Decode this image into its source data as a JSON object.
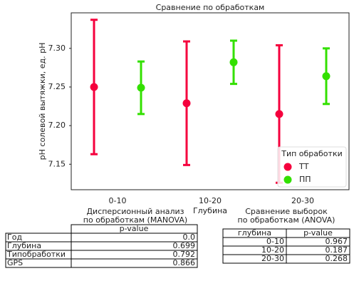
{
  "chart_data": {
    "type": "errorbar",
    "title": "Сравнение по обработкам",
    "ylabel": "pH солевой вытяжки, ед. pH",
    "xlabel": "Глубина",
    "categories": [
      "0-10",
      "10-20",
      "20-30"
    ],
    "series": [
      {
        "name": "ТТ",
        "color": "#f5003d",
        "values": [
          7.25,
          7.229,
          7.215
        ],
        "errors": [
          0.087,
          0.08,
          0.089
        ]
      },
      {
        "name": "ПП",
        "color": "#33e000",
        "values": [
          7.249,
          7.282,
          7.264
        ],
        "errors": [
          0.034,
          0.028,
          0.036
        ]
      }
    ],
    "ylim": [
      7.117,
      7.346
    ],
    "yticks": [
      7.15,
      {
        "value": 7.2,
        "label": "7.20"
      },
      7.25,
      {
        "value": 7.3,
        "label": "7.30"
      }
    ],
    "legend_title": "Тип обработки",
    "legend": "lower right",
    "grid": false
  },
  "manova": {
    "title": [
      "Дисперсионный анализ",
      "по обработкам (MANOVA)"
    ],
    "header": "p-value",
    "rows": [
      [
        "Год",
        "0.0"
      ],
      [
        "Глубина",
        "0.699"
      ],
      [
        "Типобработки",
        "0.792"
      ],
      [
        "GPS",
        "0.866"
      ]
    ]
  },
  "anova": {
    "title": [
      "Сравнение выборок",
      "по обработкам (ANOVA)"
    ],
    "header": [
      "глубина",
      "p-value"
    ],
    "rows": [
      [
        "0-10",
        "0.967"
      ],
      [
        "10-20",
        "0.187"
      ],
      [
        "20-30",
        "0.268"
      ]
    ]
  }
}
